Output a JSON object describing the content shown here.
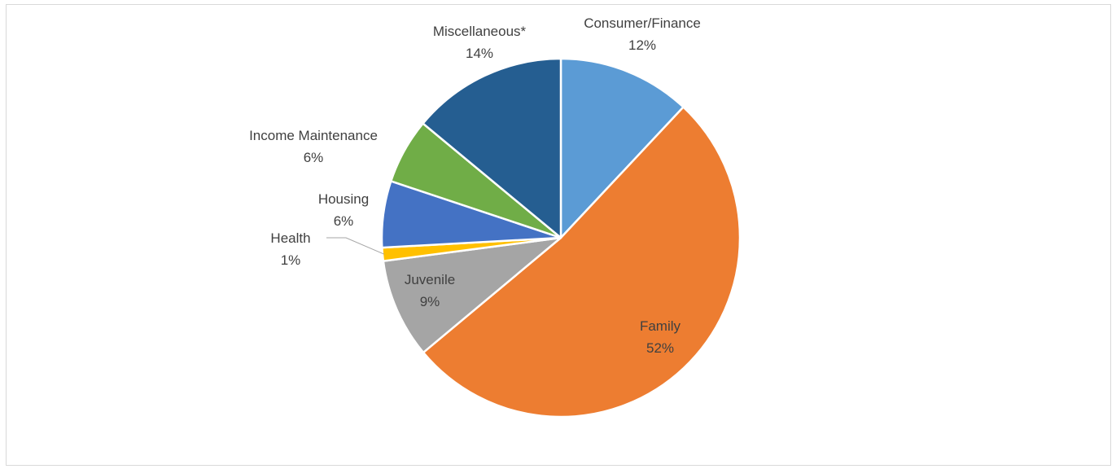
{
  "chart_data": {
    "type": "pie",
    "title": "",
    "slices": [
      {
        "label": "Consumer/Finance",
        "percent_label": "12%",
        "value": 12,
        "color": "#5b9bd5"
      },
      {
        "label": "Family",
        "percent_label": "52%",
        "value": 52,
        "color": "#ed7d31"
      },
      {
        "label": "Juvenile",
        "percent_label": "9%",
        "value": 9,
        "color": "#a5a5a5"
      },
      {
        "label": "Health",
        "percent_label": "1%",
        "value": 1.2,
        "color": "#ffc000"
      },
      {
        "label": "Housing",
        "percent_label": "6%",
        "value": 6,
        "color": "#4472c4"
      },
      {
        "label": "Income Maintenance",
        "percent_label": "6%",
        "value": 5.9,
        "color": "#70ad47"
      },
      {
        "label": "Miscellaneous*",
        "percent_label": "14%",
        "value": 14,
        "color": "#255e91"
      }
    ],
    "legend": "none",
    "data_labels": "category and percent"
  }
}
